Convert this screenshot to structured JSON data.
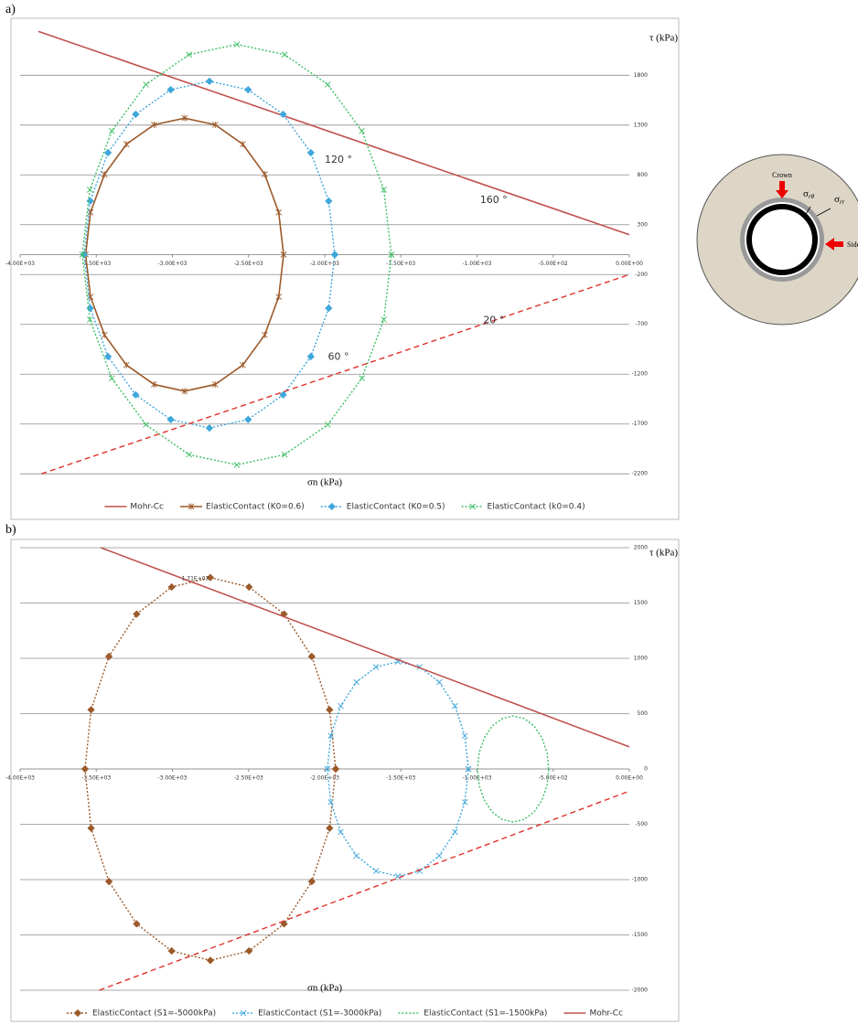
{
  "chart_data": [
    {
      "type": "line",
      "panel": "a)",
      "x_label": "σn (kPa)",
      "y_label": "τ (kPa)",
      "xlim": [
        -4000,
        0
      ],
      "xticks": [
        {
          "value": -4000,
          "label": "-4.00E+03"
        },
        {
          "value": -3500,
          "label": "-3.50E+03"
        },
        {
          "value": -3000,
          "label": "-3.00E+03"
        },
        {
          "value": -2500,
          "label": "-2.50E+03"
        },
        {
          "value": -2000,
          "label": "-2.00E+03"
        },
        {
          "value": -1500,
          "label": "-1.50E+03"
        },
        {
          "value": -1000,
          "label": "-1.00E+03"
        },
        {
          "value": -500,
          "label": "-5.00E+02"
        },
        {
          "value": 0,
          "label": "0.00E+00"
        }
      ],
      "ylim": [
        -2400,
        2280
      ],
      "yticks": [
        1800,
        1300,
        800,
        300,
        -200,
        -700,
        -1200,
        -1700,
        -2200
      ],
      "grid": true,
      "series": [
        {
          "name": "Mohr-Cc",
          "color": "#c0504d",
          "line_style": "solid",
          "marker": "none",
          "x": [
            -3880,
            0
          ],
          "values": [
            2240,
            200
          ]
        },
        {
          "name": "ElasticContact (K0=0.6)",
          "color": "#9c5a2a",
          "line_style": "solid",
          "marker": "star",
          "x": [
            -2270,
            -2302,
            -2394,
            -2538,
            -2719,
            -2920,
            -3121,
            -3302,
            -3446,
            -3538,
            -3570,
            -3538,
            -3446,
            -3302,
            -3121,
            -2920,
            -2719,
            -2538,
            -2394,
            -2302,
            -2270
          ],
          "values": [
            0,
            423,
            806,
            1108,
            1303,
            1370,
            1303,
            1108,
            806,
            423,
            0,
            -423,
            -806,
            -1108,
            -1303,
            -1370,
            -1303,
            -1108,
            -806,
            -423,
            0
          ]
        },
        {
          "name": "ElasticContact (K0=0.5)",
          "color": "#3fa7dc",
          "line_style": "dotted",
          "marker": "diamond",
          "x": [
            -1934,
            -1974,
            -2091,
            -2273,
            -2503,
            -2757,
            -3011,
            -3241,
            -3423,
            -3540,
            -3580,
            -3540,
            -3423,
            -3241,
            -3011,
            -2757,
            -2503,
            -2273,
            -2091,
            -1974,
            -1934
          ],
          "values": [
            0,
            538,
            1023,
            1408,
            1655,
            1740,
            1655,
            1408,
            1023,
            538,
            0,
            -538,
            -1023,
            -1408,
            -1655,
            -1740,
            -1655,
            -1408,
            -1023,
            -538,
            0
          ]
        },
        {
          "name": "ElasticContact (k0=0.4)",
          "color": "#3cbf64",
          "line_style": "dotted",
          "marker": "x",
          "x": [
            -1562,
            -1612,
            -1756,
            -1980,
            -2263,
            -2577,
            -2891,
            -3174,
            -3398,
            -3542,
            -3592,
            -3542,
            -3398,
            -3174,
            -2891,
            -2577,
            -2263,
            -1980,
            -1756,
            -1612,
            -1562
          ],
          "values": [
            0,
            652,
            1241,
            1707,
            2007,
            2110,
            2007,
            1707,
            1241,
            652,
            0,
            -652,
            -1241,
            -1707,
            -2007,
            -2110,
            -2007,
            -1707,
            -1241,
            -652,
            0
          ]
        },
        {
          "color": "#e0302b",
          "line_style": "dashed",
          "marker": "none",
          "x": [
            -3860,
            0
          ],
          "values": [
            -2200,
            -200
          ]
        }
      ],
      "annotations": [
        {
          "text": "120 °",
          "x": -1910,
          "y": 950
        },
        {
          "text": "160 °",
          "x": -890,
          "y": 545
        },
        {
          "text": "20 °",
          "x": -890,
          "y": -660
        },
        {
          "text": "60 °",
          "x": -1910,
          "y": -1030
        }
      ]
    },
    {
      "type": "line",
      "panel": "b)",
      "x_label": "σn (kPa)",
      "y_label": "τ (kPa)",
      "xlim": [
        -4000,
        0
      ],
      "xticks": [
        {
          "value": -4000,
          "label": "-4.00E+03"
        },
        {
          "value": -3500,
          "label": "-3.50E+03"
        },
        {
          "value": -3000,
          "label": "-3.00E+03"
        },
        {
          "value": -2500,
          "label": "-2.50E+03"
        },
        {
          "value": -2000,
          "label": "-2.00E+03"
        },
        {
          "value": -1500,
          "label": "-1.50E+03"
        },
        {
          "value": -1000,
          "label": "-1.00E+03"
        },
        {
          "value": -500,
          "label": "-5.00E+02"
        },
        {
          "value": 0,
          "label": "0.00E+00"
        }
      ],
      "ylim": [
        -2000,
        2000
      ],
      "yticks": [
        2000,
        1500,
        1000,
        500,
        0,
        -500,
        -1000,
        -1500,
        -2000
      ],
      "grid": true,
      "series": [
        {
          "name": "ElasticContact (S1=-5000kPa)",
          "color": "#9c5a2a",
          "line_style": "dotted",
          "marker": "diamond",
          "x": [
            -1928,
            -1968,
            -2085,
            -2267,
            -2497,
            -2751,
            -3005,
            -3235,
            -3417,
            -3534,
            -3574,
            -3534,
            -3417,
            -3235,
            -3005,
            -2751,
            -2497,
            -2267,
            -2085,
            -1968,
            -1928
          ],
          "values": [
            0,
            535,
            1017,
            1400,
            1645,
            1730,
            1645,
            1400,
            1017,
            535,
            0,
            -535,
            -1017,
            -1400,
            -1645,
            -1730,
            -1645,
            -1400,
            -1017,
            -535,
            0
          ]
        },
        {
          "name": "ElasticContact (S1=-3000kPa)",
          "color": "#3fa7dc",
          "line_style": "dotted",
          "marker": "x",
          "x": [
            -1057,
            -1080,
            -1145,
            -1248,
            -1377,
            -1520,
            -1663,
            -1792,
            -1895,
            -1960,
            -1983,
            -1960,
            -1895,
            -1792,
            -1663,
            -1520,
            -1377,
            -1248,
            -1145,
            -1080,
            -1057
          ],
          "values": [
            0,
            300,
            570,
            785,
            922,
            970,
            922,
            785,
            570,
            300,
            0,
            -300,
            -570,
            -785,
            -922,
            -970,
            -922,
            -785,
            -570,
            -300,
            0
          ]
        },
        {
          "name": "ElasticContact (S1=-1500kPa)",
          "color": "#3cbf64",
          "line_style": "dotted",
          "marker": "none",
          "x": [
            -529,
            -540,
            -574,
            -625,
            -691,
            -763,
            -835,
            -901,
            -952,
            -986,
            -997,
            -986,
            -952,
            -901,
            -835,
            -763,
            -691,
            -625,
            -574,
            -540,
            -529
          ],
          "values": [
            0,
            148,
            282,
            388,
            456,
            480,
            456,
            388,
            282,
            148,
            0,
            -148,
            -282,
            -388,
            -456,
            -480,
            -456,
            -388,
            -282,
            -148,
            0
          ]
        },
        {
          "name": "Mohr-Cc",
          "color": "#c0504d",
          "line_style": "solid",
          "marker": "none",
          "x": [
            -3470,
            0
          ],
          "values": [
            2000,
            200
          ]
        },
        {
          "color": "#e0302b",
          "line_style": "dashed",
          "marker": "none",
          "x": [
            -3480,
            0
          ],
          "values": [
            -2000,
            -200
          ]
        }
      ],
      "annotations": [
        {
          "text": "1.71E+03",
          "x": -2850,
          "y": 1720
        }
      ]
    }
  ],
  "diagram": {
    "crown": "Crown",
    "side": "Side",
    "stress_theta": {
      "symbol": "σ",
      "sub": "rθ"
    },
    "stress_r": {
      "symbol": "σ",
      "sub": "rr"
    }
  }
}
